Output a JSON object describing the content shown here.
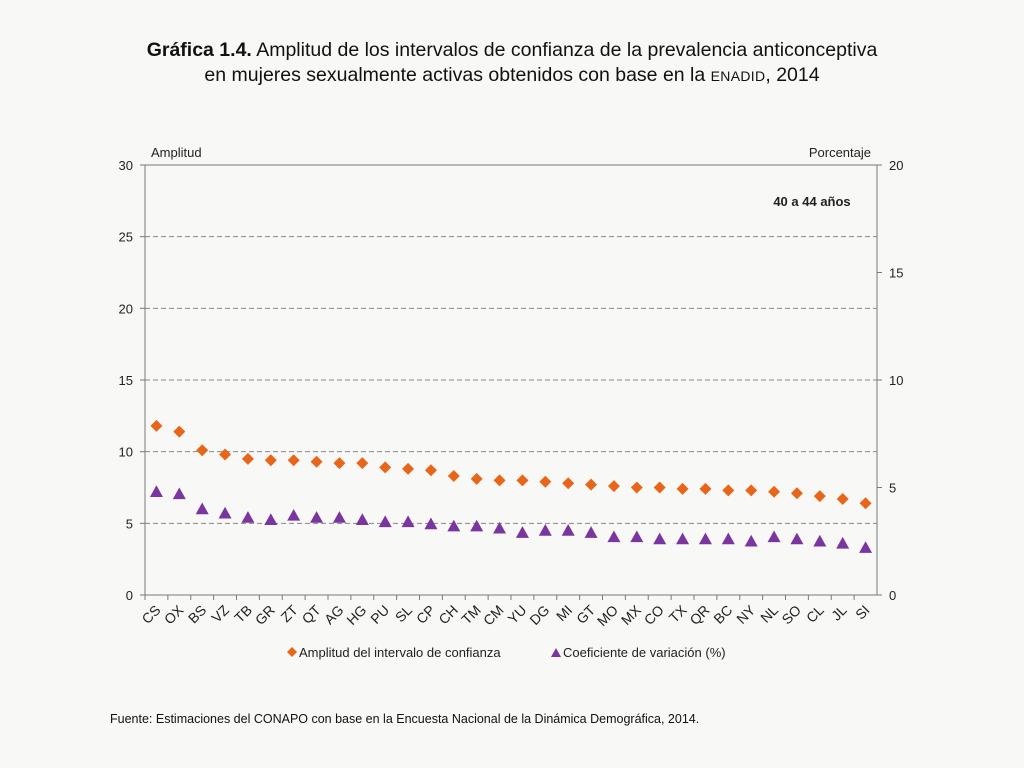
{
  "title": {
    "bold_prefix": "Gráfica 1.4.",
    "line1_rest": "Amplitud de los intervalos de confianza de la prevalencia anticonceptiva",
    "line2_start": "en mujeres sexualmente activas obtenidos con base en la",
    "line2_smallcaps": "ENADID",
    "line2_end": ", 2014"
  },
  "source_note": "Fuente: Estimaciones del CONAPO con base en la Encuesta Nacional de la Dinámica Demográfica, 2014.",
  "colors": {
    "series1": "#e8661a",
    "series2": "#7a35a0",
    "grid": "#888888",
    "axis": "#7a7a7a"
  },
  "chart_data": {
    "type": "scatter",
    "annotation": "40 a 44 años",
    "left_axis": {
      "label": "Amplitud",
      "range": [
        0,
        30
      ],
      "ticks": [
        0,
        5,
        10,
        15,
        20,
        25,
        30
      ]
    },
    "right_axis": {
      "label": "Porcentaje",
      "range": [
        0,
        20
      ],
      "ticks": [
        0,
        5,
        10,
        15,
        20
      ]
    },
    "grid": "horizontal dashed",
    "legend_position": "bottom",
    "categories": [
      "CS",
      "OX",
      "BS",
      "VZ",
      "TB",
      "GR",
      "ZT",
      "QT",
      "AG",
      "HG",
      "PU",
      "SL",
      "CP",
      "CH",
      "TM",
      "CM",
      "YU",
      "DG",
      "MI",
      "GT",
      "MO",
      "MX",
      "CO",
      "TX",
      "QR",
      "BC",
      "NY",
      "NL",
      "SO",
      "CL",
      "JL",
      "SI"
    ],
    "series": [
      {
        "name": "Amplitud del intervalo de confianza",
        "axis": "left",
        "marker": "diamond",
        "values": [
          11.8,
          11.4,
          10.1,
          9.8,
          9.5,
          9.4,
          9.4,
          9.3,
          9.2,
          9.2,
          8.9,
          8.8,
          8.7,
          8.3,
          8.1,
          8.0,
          8.0,
          7.9,
          7.8,
          7.7,
          7.6,
          7.5,
          7.5,
          7.4,
          7.4,
          7.3,
          7.3,
          7.2,
          7.1,
          6.9,
          6.7,
          6.4
        ]
      },
      {
        "name": "Coeficiente de variación (%)",
        "axis": "right",
        "marker": "triangle",
        "values": [
          4.8,
          4.7,
          4.0,
          3.8,
          3.6,
          3.5,
          3.7,
          3.6,
          3.6,
          3.5,
          3.4,
          3.4,
          3.3,
          3.2,
          3.2,
          3.1,
          2.9,
          3.0,
          3.0,
          2.9,
          2.7,
          2.7,
          2.6,
          2.6,
          2.6,
          2.6,
          2.5,
          2.7,
          2.6,
          2.5,
          2.4,
          2.2
        ]
      }
    ]
  }
}
